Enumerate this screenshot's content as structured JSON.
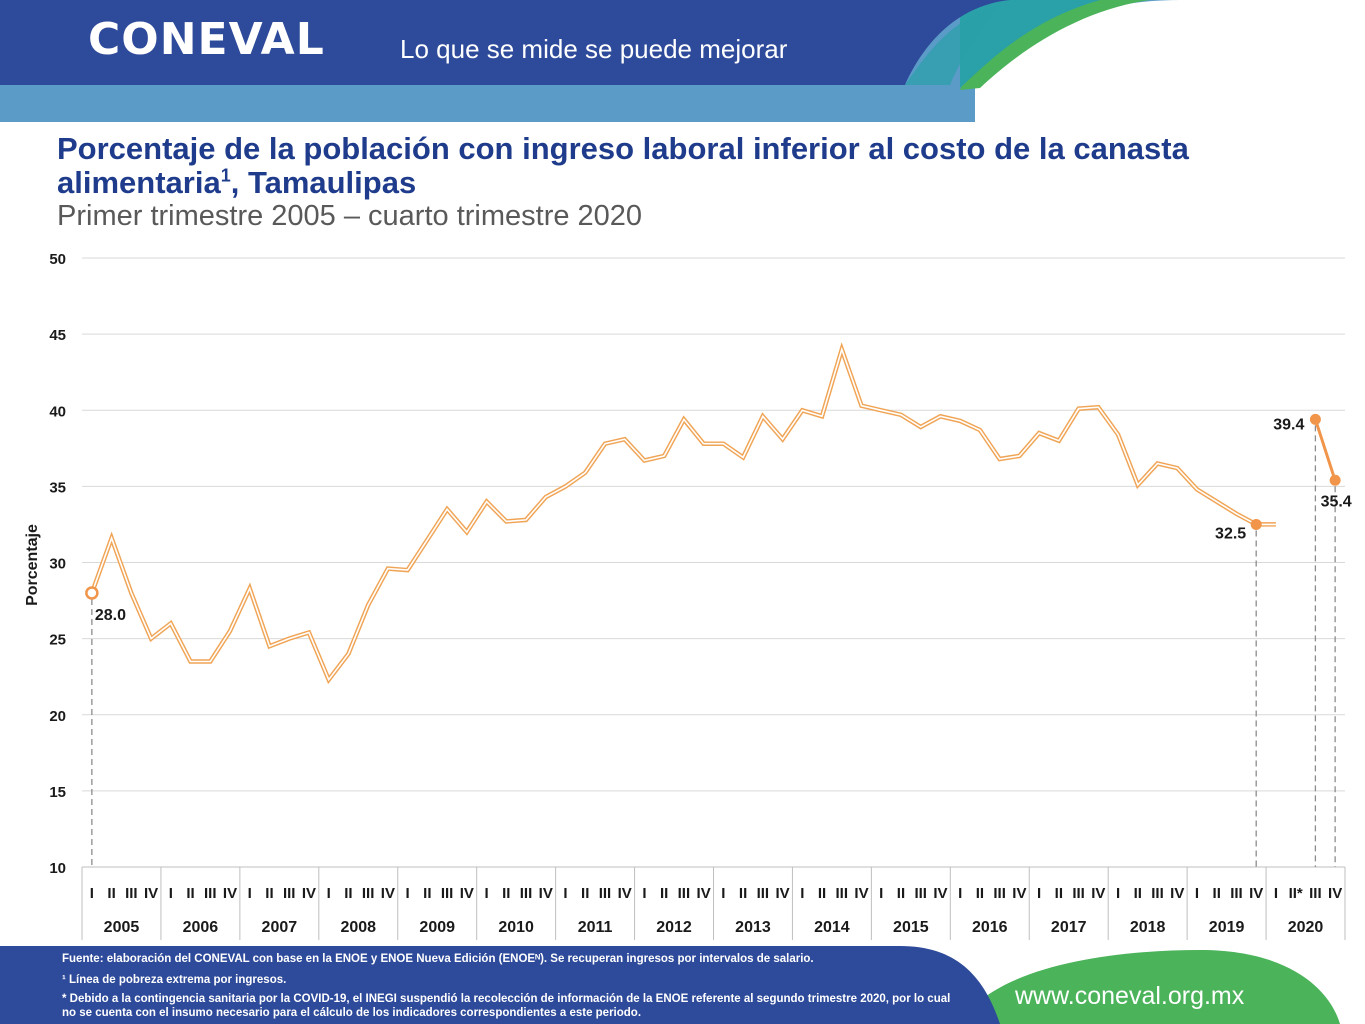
{
  "header": {
    "logo": "CONEVAL",
    "tagline": "Lo que se mide se puede mejorar"
  },
  "title": {
    "main": "Porcentaje de la población con ingreso laboral inferior al costo de la canasta alimentaria",
    "sup": "1",
    "suffix": ", Tamaulipas",
    "subtitle": "Primer trimestre 2005 – cuarto trimestre 2020"
  },
  "colors": {
    "navy": "#2e4a9a",
    "light_blue": "#5a9bc8",
    "teal": "#2aa0a8",
    "green": "#4bb35a",
    "line": "#f0a455",
    "marker": "#f0954a"
  },
  "chart_data": {
    "type": "line",
    "title": "Porcentaje de la población con ingreso laboral inferior al costo de la canasta alimentaria1, Tamaulipas",
    "subtitle": "Primer trimestre 2005 – cuarto trimestre 2020",
    "ylabel": "Porcentaje",
    "ylim": [
      10,
      50
    ],
    "yticks": [
      10,
      15,
      20,
      25,
      30,
      35,
      40,
      45,
      50
    ],
    "years": [
      "2005",
      "2006",
      "2007",
      "2008",
      "2009",
      "2010",
      "2011",
      "2012",
      "2013",
      "2014",
      "2015",
      "2016",
      "2017",
      "2018",
      "2019",
      "2020"
    ],
    "quarters": [
      "I",
      "II",
      "III",
      "IV"
    ],
    "quarter_labels_2020": [
      "I",
      "II*",
      "III",
      "IV"
    ],
    "grid": true,
    "series": [
      {
        "segment": "2005-I to 2020-I",
        "values": [
          28.0,
          31.6,
          28.0,
          25.0,
          26.0,
          23.5,
          23.5,
          25.5,
          28.3,
          24.5,
          25.0,
          25.4,
          22.3,
          24.0,
          27.2,
          29.6,
          29.5,
          31.5,
          33.5,
          32.0,
          34.0,
          32.7,
          32.8,
          34.3,
          35.0,
          35.9,
          37.8,
          38.1,
          36.7,
          37.0,
          39.4,
          37.8,
          37.8,
          36.9,
          39.6,
          38.1,
          40.0,
          39.6,
          44.0,
          40.3,
          40.0,
          39.7,
          38.9,
          39.6,
          39.3,
          38.7,
          36.8,
          37.0,
          38.5,
          38.0,
          40.1,
          40.2,
          38.4,
          35.1,
          36.5,
          36.2,
          34.8,
          34.0,
          33.2,
          32.5,
          32.5
        ]
      },
      {
        "segment": "2020-III to 2020-IV",
        "values": [
          39.4,
          35.4
        ]
      }
    ],
    "data_labels": [
      {
        "quarter": "2005-I",
        "text": "28.0"
      },
      {
        "quarter": "2019-IV",
        "text": "32.5"
      },
      {
        "quarter": "2020-III",
        "text": "39.4"
      },
      {
        "quarter": "2020-IV",
        "text": "35.4"
      }
    ]
  },
  "footer": {
    "source": "Fuente: elaboración del CONEVAL con base en la ENOE y ENOE Nueva Edición (ENOEᴺ). Se recuperan ingresos por intervalos de salario.",
    "note1": "¹ Línea de pobreza extrema por ingresos.",
    "note2": "* Debido a la contingencia sanitaria por la COVID-19, el INEGI suspendió la recolección de información de la ENOE referente al segundo trimestre 2020, por lo cual no se cuenta con el insumo necesario para el cálculo de los indicadores correspondientes a este periodo.",
    "url": "www.coneval.org.mx"
  }
}
